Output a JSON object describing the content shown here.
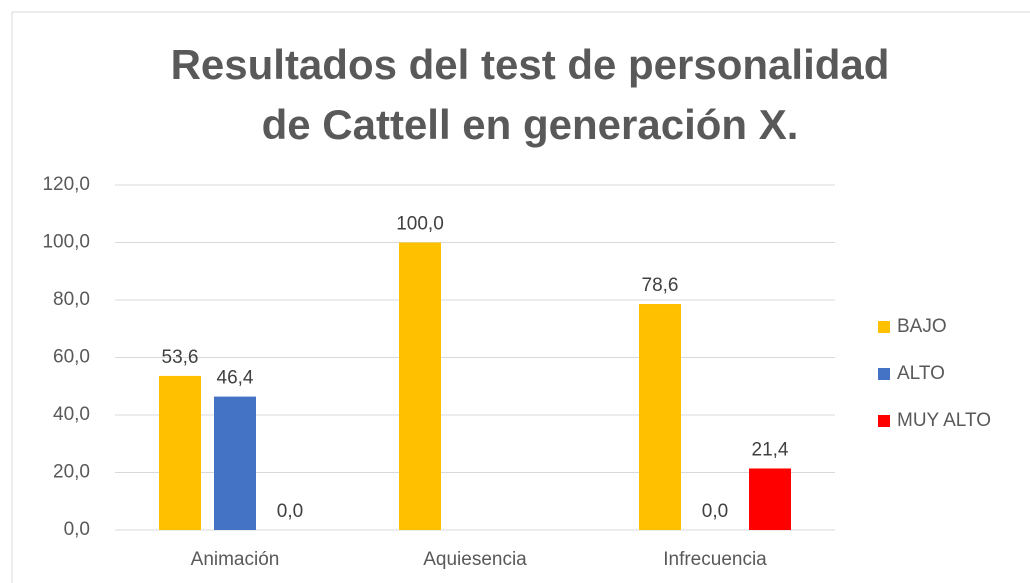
{
  "chart_data": {
    "type": "bar",
    "title": [
      "Resultados del test de personalidad",
      "de Cattell en generación X."
    ],
    "categories": [
      "Animación",
      "Aquiesencia",
      "Infrecuencia"
    ],
    "series": [
      {
        "name": "BAJO",
        "color": "#ffc000",
        "values": [
          53.6,
          100.0,
          78.6
        ],
        "value_labels": [
          "53,6",
          "100,0",
          "78,6"
        ]
      },
      {
        "name": "ALTO",
        "color": "#4472c4",
        "values": [
          46.4,
          null,
          0.0
        ],
        "value_labels": [
          "46,4",
          null,
          "0,0"
        ]
      },
      {
        "name": "MUY ALTO",
        "color": "#ff0000",
        "values": [
          0.0,
          null,
          21.4
        ],
        "value_labels": [
          "0,0",
          null,
          "21,4"
        ]
      }
    ],
    "ylim": [
      0,
      120
    ],
    "yticks": [
      {
        "value": 0,
        "label": "0,0"
      },
      {
        "value": 20,
        "label": "20,0"
      },
      {
        "value": 40,
        "label": "40,0"
      },
      {
        "value": 60,
        "label": "60,0"
      },
      {
        "value": 80,
        "label": "80,0"
      },
      {
        "value": 100,
        "label": "100,0"
      },
      {
        "value": 120,
        "label": "120,0"
      }
    ],
    "grid": true,
    "legend": "right"
  }
}
